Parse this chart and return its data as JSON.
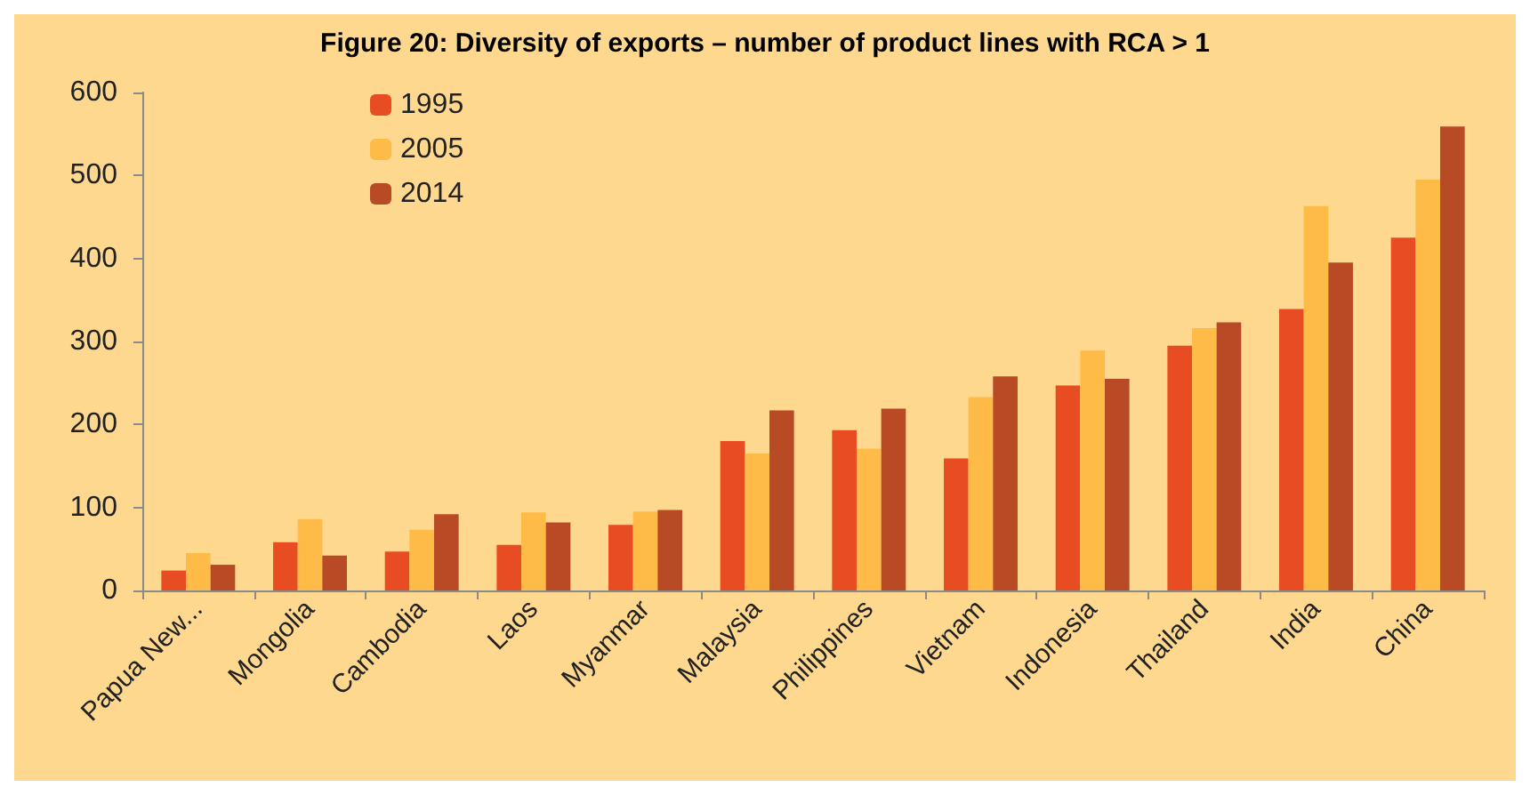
{
  "chart_data": {
    "type": "bar",
    "title": "Figure 20: Diversity of exports – number of product lines with RCA > 1",
    "categories": [
      "Papua New...",
      "Mongolia",
      "Cambodia",
      "Laos",
      "Myanmar",
      "Malaysia",
      "Philippines",
      "Vietnam",
      "Indonesia",
      "Thailand",
      "India",
      "China"
    ],
    "series": [
      {
        "name": "1995",
        "color": "#e84c22",
        "values": [
          24,
          58,
          47,
          55,
          79,
          180,
          193,
          159,
          247,
          295,
          339,
          425
        ]
      },
      {
        "name": "2005",
        "color": "#ffbb48",
        "values": [
          45,
          86,
          73,
          94,
          95,
          165,
          171,
          233,
          289,
          316,
          463,
          495
        ]
      },
      {
        "name": "2014",
        "color": "#b84a26",
        "values": [
          31,
          42,
          92,
          82,
          97,
          217,
          219,
          258,
          255,
          323,
          395,
          559
        ]
      }
    ],
    "ylim": [
      0,
      600
    ],
    "yticks": [
      0,
      100,
      200,
      300,
      400,
      500,
      600
    ],
    "grid": false,
    "legend": "top left"
  }
}
